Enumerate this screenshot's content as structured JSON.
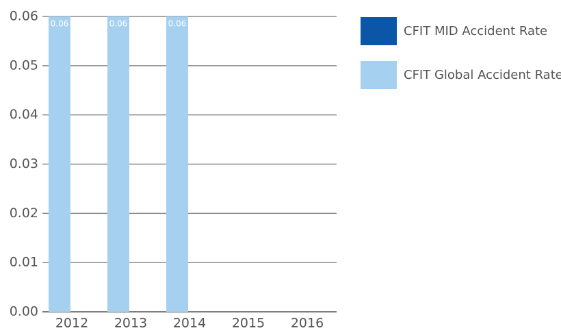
{
  "chart_data": {
    "type": "bar",
    "categories": [
      "2012",
      "2013",
      "2014",
      "2015",
      "2016"
    ],
    "series": [
      {
        "name": "CFIT MID Accident Rate",
        "color": "#0b56a6",
        "values": [
          null,
          null,
          null,
          null,
          null
        ]
      },
      {
        "name": "CFIT Global Accident Rate",
        "color": "#a5d0f0",
        "values": [
          0.06,
          0.06,
          0.06,
          null,
          null
        ]
      }
    ],
    "ylim": [
      0,
      0.06
    ],
    "yticks": [
      {
        "value": 0,
        "label": "0.00"
      },
      0.01,
      0.02,
      0.03,
      0.04,
      0.05,
      0.06
    ],
    "grid": true,
    "legend": "right",
    "data_labels": true
  }
}
